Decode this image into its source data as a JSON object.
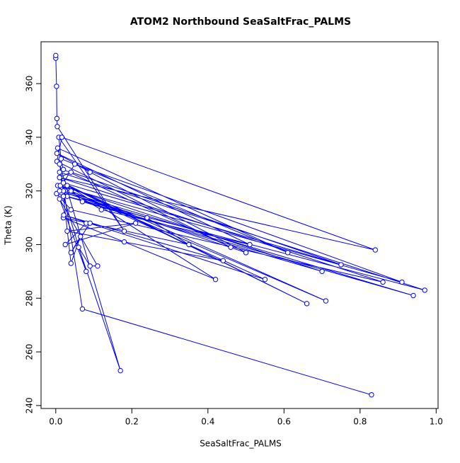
{
  "chart_data": {
    "type": "scatter-line",
    "title": "ATOM2 Northbound SeaSaltFrac_PALMS",
    "x_label": "SeaSaltFrac_PALMS",
    "y_label": "Theta (K)",
    "color": "#0000ff",
    "x": [
      0.0,
      0.0,
      0.002,
      0.003,
      0.004,
      0.18,
      0.008,
      0.014,
      0.61,
      0.005,
      0.02,
      0.46,
      0.003,
      0.016,
      0.84,
      0.01,
      0.04,
      0.75,
      0.02,
      0.05,
      0.91,
      0.005,
      0.03,
      0.97,
      0.01,
      0.02,
      0.94,
      0.002,
      0.04,
      0.86,
      0.01,
      0.07,
      0.7,
      0.012,
      0.12,
      0.51,
      0.003,
      0.09,
      0.5,
      0.01,
      0.24,
      0.35,
      0.02,
      0.18,
      0.42,
      0.02,
      0.66,
      0.03,
      0.71,
      0.04,
      0.55,
      0.021,
      0.44,
      0.03,
      0.21,
      0.025,
      0.08,
      0.09,
      0.04,
      0.065,
      0.04,
      0.02,
      0.08,
      0.01,
      0.11,
      0.09,
      0.06,
      0.17,
      0.01,
      0.07,
      0.83
    ],
    "values": [
      369.5,
      370.5,
      359,
      347,
      344,
      305,
      340,
      332,
      297,
      336,
      328,
      299,
      331,
      340,
      298,
      325,
      327,
      292.5,
      323,
      330,
      286,
      322,
      318,
      283,
      327,
      320,
      281,
      319,
      313,
      286,
      325,
      316,
      290,
      322,
      313,
      300,
      334,
      327,
      297,
      320,
      310,
      300,
      310,
      301,
      287,
      323,
      278,
      322,
      279,
      320,
      287,
      311,
      294,
      305,
      308,
      300,
      308,
      308,
      297,
      303,
      293,
      318,
      290,
      317,
      292,
      292,
      299,
      253,
      330,
      276,
      244
    ],
    "xlim": [
      -0.0387,
      1.005
    ],
    "ylim": [
      238.9,
      375.6
    ],
    "xticks": [
      {
        "value": 0,
        "label": "0.0"
      },
      0.2,
      0.4,
      0.6,
      0.8,
      {
        "value": 1,
        "label": "1.0"
      }
    ],
    "yticks": [
      240,
      260,
      280,
      300,
      320,
      340,
      360
    ]
  }
}
